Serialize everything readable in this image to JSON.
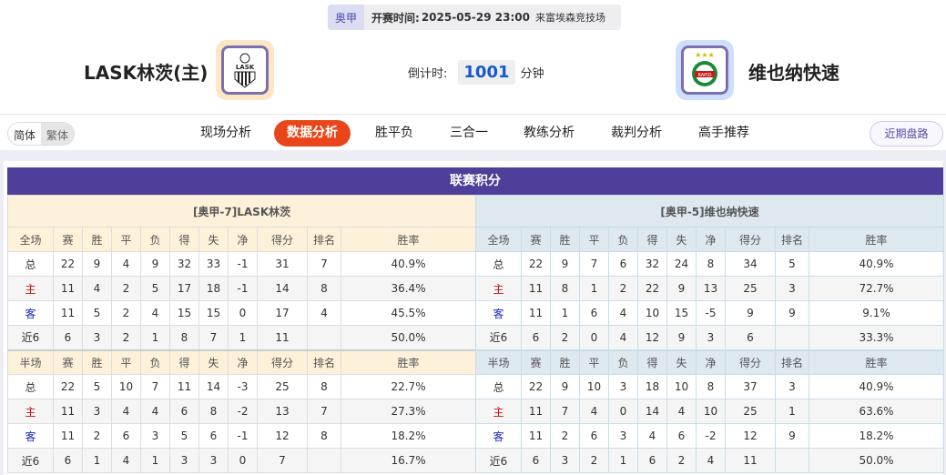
{
  "match": {
    "league": "奥甲",
    "time_label": "开赛时间:",
    "time": "2025-05-29 23:00",
    "venue": "来富埃森竞技场"
  },
  "home": {
    "name": "LASK林茨(主)",
    "logo": "LASK"
  },
  "away": {
    "name": "维也纳快速",
    "logo": "RAPID"
  },
  "countdown": {
    "label": "倒计时:",
    "value": "1001",
    "unit": "分钟"
  },
  "lang": {
    "simplified": "简体",
    "traditional": "繁体"
  },
  "nav": [
    "现场分析",
    "数据分析",
    "胜平负",
    "三合一",
    "教练分析",
    "裁判分析",
    "高手推荐"
  ],
  "nav_active": 1,
  "recent_button": "近期盘路",
  "colors": {
    "accent": "#e8461a",
    "title_bg": "#4f3f9a",
    "home_text": "#d01010",
    "away_text": "#1a28c8"
  },
  "standings": {
    "title": "联赛积分",
    "columns": [
      "赛",
      "胜",
      "平",
      "负",
      "得",
      "失",
      "净",
      "得分",
      "排名",
      "胜率"
    ],
    "full_label": "全场",
    "half_label": "半场",
    "teams": [
      {
        "caption": "[奥甲-7]LASK林茨",
        "full": [
          [
            "总",
            "22",
            "9",
            "4",
            "9",
            "32",
            "33",
            "-1",
            "31",
            "7",
            "40.9%"
          ],
          [
            "主",
            "11",
            "4",
            "2",
            "5",
            "17",
            "18",
            "-1",
            "14",
            "8",
            "36.4%"
          ],
          [
            "客",
            "11",
            "5",
            "2",
            "4",
            "15",
            "15",
            "0",
            "17",
            "4",
            "45.5%"
          ],
          [
            "近6",
            "6",
            "3",
            "2",
            "1",
            "8",
            "7",
            "1",
            "11",
            "",
            "50.0%"
          ]
        ],
        "half": [
          [
            "总",
            "22",
            "5",
            "10",
            "7",
            "11",
            "14",
            "-3",
            "25",
            "8",
            "22.7%"
          ],
          [
            "主",
            "11",
            "3",
            "4",
            "4",
            "6",
            "8",
            "-2",
            "13",
            "7",
            "27.3%"
          ],
          [
            "客",
            "11",
            "2",
            "6",
            "3",
            "5",
            "6",
            "-1",
            "12",
            "8",
            "18.2%"
          ],
          [
            "近6",
            "6",
            "1",
            "4",
            "1",
            "3",
            "3",
            "0",
            "7",
            "",
            "16.7%"
          ]
        ]
      },
      {
        "caption": "[奥甲-5]维也纳快速",
        "full": [
          [
            "总",
            "22",
            "9",
            "7",
            "6",
            "32",
            "24",
            "8",
            "34",
            "5",
            "40.9%"
          ],
          [
            "主",
            "11",
            "8",
            "1",
            "2",
            "22",
            "9",
            "13",
            "25",
            "3",
            "72.7%"
          ],
          [
            "客",
            "11",
            "1",
            "6",
            "4",
            "10",
            "15",
            "-5",
            "9",
            "9",
            "9.1%"
          ],
          [
            "近6",
            "6",
            "2",
            "0",
            "4",
            "12",
            "9",
            "3",
            "6",
            "",
            "33.3%"
          ]
        ],
        "half": [
          [
            "总",
            "22",
            "9",
            "10",
            "3",
            "18",
            "10",
            "8",
            "37",
            "3",
            "40.9%"
          ],
          [
            "主",
            "11",
            "7",
            "4",
            "0",
            "14",
            "4",
            "10",
            "25",
            "1",
            "63.6%"
          ],
          [
            "客",
            "11",
            "2",
            "6",
            "3",
            "4",
            "6",
            "-2",
            "12",
            "9",
            "18.2%"
          ],
          [
            "近6",
            "6",
            "3",
            "2",
            "1",
            "6",
            "2",
            "4",
            "11",
            "",
            "50.0%"
          ]
        ]
      }
    ]
  }
}
